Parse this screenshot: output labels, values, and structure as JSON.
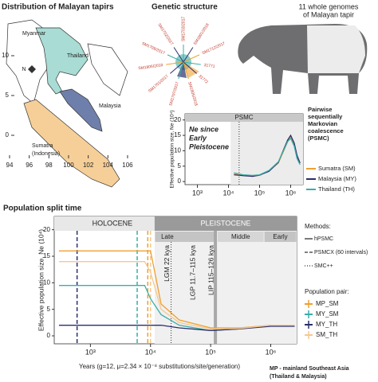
{
  "map": {
    "title": "Distribution of Malayan tapirs",
    "xticks": [
      94,
      96,
      98,
      100,
      102,
      104,
      106
    ],
    "yticks": [
      0,
      5,
      10
    ],
    "places": [
      "Myanmar",
      "Thailand",
      "Malaysia",
      "Sumatra",
      "(Indonesia)"
    ],
    "compass": "N"
  },
  "tree": {
    "title": "Genetic structure",
    "labels": [
      "SM1703/2017",
      "SM1801/2018",
      "SM1712/2017",
      "31771",
      "31772",
      "SM1805/2018",
      "SM1707/2017",
      "SM1701/2017",
      "SM1806/2018",
      "SM1709/2017",
      "SM1702/2017"
    ]
  },
  "tapir": {
    "lines": [
      "11 whole genomes",
      "of Malayan tapir"
    ]
  },
  "chart_data": [
    {
      "type": "line",
      "title": "PSMC",
      "annotation": [
        "Ne since",
        "Early",
        "Pleistocene"
      ],
      "side_label": [
        "Pairwise",
        "sequentially",
        "Markovian",
        "coalescence",
        "(PSMC)"
      ],
      "ylabel": "Effective population size, Ne (10⁴)",
      "log_x": true,
      "xlim": [
        400,
        2500000
      ],
      "ylim": [
        -1,
        22
      ],
      "xticks": [
        {
          "value": 1000,
          "label": "10³"
        },
        {
          "value": 10000,
          "label": "10⁴"
        },
        {
          "value": 100000,
          "label": "10⁵"
        },
        {
          "value": 1000000,
          "label": "10⁶"
        }
      ],
      "yticks": [
        0,
        5,
        10,
        15,
        20
      ],
      "shade_from": 11700,
      "marker_x": 22000,
      "x": [
        15000,
        30000,
        60000,
        100000,
        200000,
        400000,
        600000,
        800000,
        1000000,
        1300000,
        1600000,
        2000000
      ],
      "series": [
        {
          "name": "Sumatra (SM)",
          "color": "#f0a030",
          "values": [
            2.5,
            2,
            1.8,
            2,
            3.5,
            6,
            10,
            13,
            14.5,
            12,
            8,
            6
          ]
        },
        {
          "name": "Malaysia (MY)",
          "color": "#2b2f6b",
          "values": [
            2.2,
            1.9,
            1.7,
            2.1,
            3.3,
            6.2,
            10.5,
            13.5,
            15,
            12.5,
            8.5,
            6
          ]
        },
        {
          "name": "Thailand (TH)",
          "color": "#3aaea8",
          "values": [
            2.8,
            2.2,
            2,
            2.2,
            3.6,
            6.4,
            10.2,
            13,
            14,
            11.5,
            7.5,
            5.5
          ]
        }
      ]
    },
    {
      "type": "line",
      "title": "Population split time",
      "xlabel": "Years (g=12, μ=2.34 × 10⁻⁸ substitutions/site/generation)",
      "ylabel": "Effective population size, Ne (10⁴)",
      "log_x": true,
      "xlim": [
        250,
        2700000
      ],
      "ylim": [
        -1.5,
        22.5
      ],
      "xticks": [
        {
          "value": 1000,
          "label": "10³"
        },
        {
          "value": 10000,
          "label": "10⁴"
        },
        {
          "value": 100000,
          "label": "10⁵"
        },
        {
          "value": 1000000,
          "label": "10⁶"
        }
      ],
      "yticks": [
        0,
        5,
        10,
        15,
        20
      ],
      "periods": [
        {
          "label": "HOLOCENE",
          "from": 250,
          "to": 11700
        },
        {
          "label": "PLEISTOCENE",
          "from": 11700,
          "to": 2700000
        }
      ],
      "subperiods": [
        {
          "label": "Late",
          "from": 11700,
          "to": 129000
        },
        {
          "label": "Middle",
          "from": 129000,
          "to": 774000
        },
        {
          "label": "Early",
          "from": 774000,
          "to": 2700000
        }
      ],
      "events": [
        {
          "label": "LGM 22 kya",
          "value": 22000
        },
        {
          "label": "LGP 11.7–115 kya",
          "value": 60000
        },
        {
          "label": "LIP 115–126 kya",
          "value": 120000
        }
      ],
      "x": [
        300,
        5000,
        8000,
        10000,
        15000,
        30000,
        100000,
        300000,
        1000000,
        2500000
      ],
      "series": [
        {
          "name": "MP_SM",
          "color": "#f0a030",
          "split": 9000,
          "values": [
            16,
            16,
            16,
            16,
            6,
            3,
            1.5,
            1.5,
            2,
            2
          ]
        },
        {
          "name": "MY_SM",
          "color": "#3aaea8",
          "split": 6000,
          "values": [
            9.5,
            9.5,
            9.5,
            7,
            4,
            2,
            1,
            1.3,
            2,
            2
          ]
        },
        {
          "name": "MY_TH",
          "color": "#2b2f6b",
          "split": 600,
          "values": [
            2,
            2,
            2,
            2,
            2,
            1.5,
            1,
            1.3,
            1.8,
            1.8
          ]
        },
        {
          "name": "SM_TH",
          "color": "#f5c890",
          "split": 10000,
          "values": [
            14,
            14,
            14,
            12,
            5,
            2.5,
            1.3,
            1.4,
            2,
            2
          ]
        }
      ],
      "methods_title": "Methods:",
      "methods": [
        {
          "name": "hPSMC",
          "dash": "none"
        },
        {
          "name": "PSMCX (60 intervals)",
          "dash": "4 2"
        },
        {
          "name": "SMC++",
          "dash": "1 2"
        }
      ],
      "pairs_title": "Population pair:",
      "footnote": [
        "MP - mainland Southeast Asia",
        "(Thailand & Malaysia)"
      ]
    }
  ]
}
